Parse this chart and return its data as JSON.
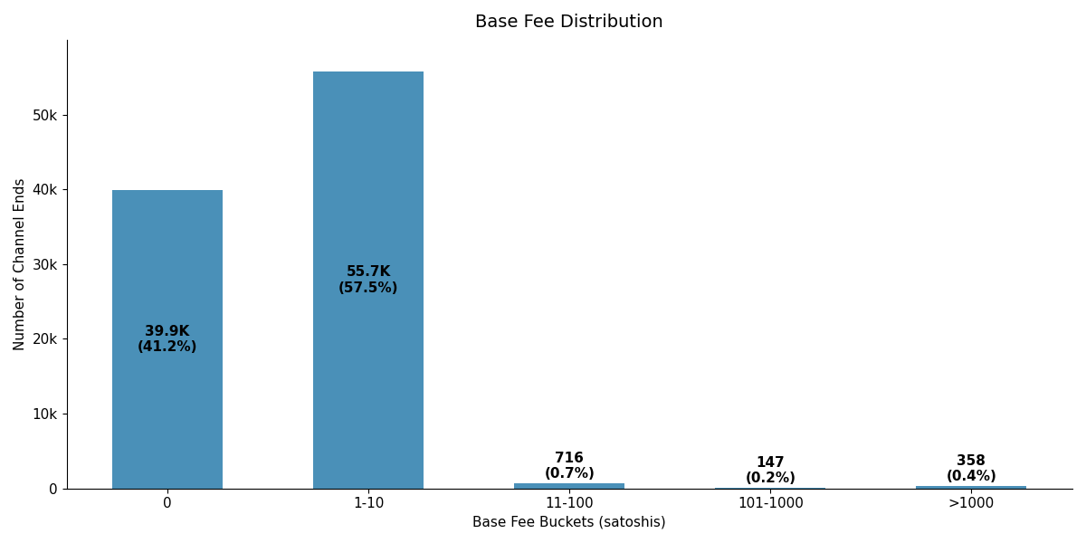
{
  "categories": [
    "0",
    "1-10",
    "11-100",
    "101-1000",
    ">1000"
  ],
  "values": [
    39900,
    55700,
    716,
    147,
    358
  ],
  "labels_line1": [
    "39.9K",
    "55.7K",
    "716",
    "147",
    "358"
  ],
  "labels_line2": [
    "(41.2%)",
    "(57.5%)",
    "(0.7%)",
    "(0.2%)",
    "(0.4%)"
  ],
  "bar_color": "#4a90b8",
  "title": "Base Fee Distribution",
  "xlabel": "Base Fee Buckets (satoshis)",
  "ylabel": "Number of Channel Ends",
  "title_fontsize": 14,
  "label_fontsize": 11,
  "tick_fontsize": 11,
  "background_color": "#ffffff",
  "ylim": [
    0,
    60000
  ],
  "yticks": [
    0,
    10000,
    20000,
    30000,
    40000,
    50000
  ],
  "ytick_labels": [
    "0",
    "10k",
    "20k",
    "30k",
    "40k",
    "50k"
  ],
  "bar_width": 0.55
}
